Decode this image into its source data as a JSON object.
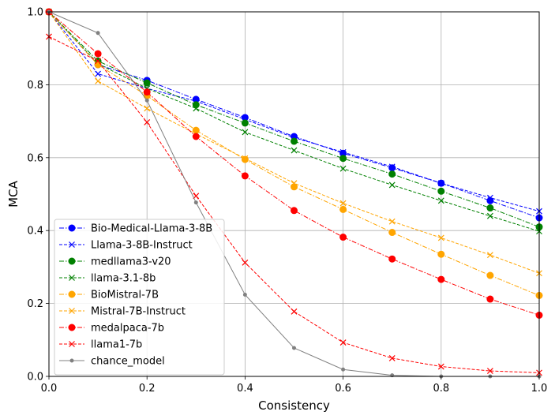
{
  "chart_data": {
    "type": "line",
    "title": "",
    "xlabel": "Consistency",
    "ylabel": "MCA",
    "xlim": [
      0,
      1
    ],
    "ylim": [
      0,
      1
    ],
    "grid": true,
    "legend_position": "lower-left",
    "x": [
      0,
      0.1,
      0.2,
      0.3,
      0.4,
      0.5,
      0.6,
      0.7,
      0.8,
      0.9,
      1.0
    ],
    "xticks": [
      "0.0",
      "0.2",
      "0.4",
      "0.6",
      "0.8",
      "1.0"
    ],
    "yticks": [
      "0.0",
      "0.2",
      "0.4",
      "0.6",
      "0.8",
      "1.0"
    ],
    "series": [
      {
        "name": "Bio-Medical-Llama-3-8B",
        "color": "#0000ff",
        "marker": "circle",
        "dash": "dashdot",
        "values": [
          1.0,
          0.855,
          0.812,
          0.76,
          0.71,
          0.658,
          0.612,
          0.572,
          0.53,
          0.482,
          0.435
        ]
      },
      {
        "name": "Llama-3-8B-Instruct",
        "color": "#0000ff",
        "marker": "x",
        "dash": "dashed",
        "values": [
          1.0,
          0.83,
          0.79,
          0.755,
          0.705,
          0.655,
          0.615,
          0.575,
          0.53,
          0.49,
          0.453
        ]
      },
      {
        "name": "medllama3-v20",
        "color": "#008000",
        "marker": "circle",
        "dash": "dashdot",
        "values": [
          1.0,
          0.865,
          0.805,
          0.745,
          0.695,
          0.645,
          0.598,
          0.555,
          0.508,
          0.462,
          0.41
        ]
      },
      {
        "name": "llama-3.1-8b",
        "color": "#008000",
        "marker": "x",
        "dash": "dashed",
        "values": [
          1.0,
          0.858,
          0.79,
          0.735,
          0.67,
          0.62,
          0.57,
          0.525,
          0.482,
          0.44,
          0.398
        ]
      },
      {
        "name": "BioMistral-7B",
        "color": "#ffa500",
        "marker": "circle",
        "dash": "dashdot",
        "values": [
          1.0,
          0.855,
          0.77,
          0.675,
          0.595,
          0.52,
          0.458,
          0.395,
          0.335,
          0.277,
          0.222
        ]
      },
      {
        "name": "Mistral-7B-Instruct",
        "color": "#ffa500",
        "marker": "x",
        "dash": "dashed",
        "values": [
          1.0,
          0.81,
          0.735,
          0.665,
          0.598,
          0.53,
          0.475,
          0.425,
          0.38,
          0.333,
          0.283
        ]
      },
      {
        "name": "medalpaca-7b",
        "color": "#ff0000",
        "marker": "circle",
        "dash": "dashdot",
        "values": [
          1.0,
          0.885,
          0.78,
          0.658,
          0.55,
          0.455,
          0.382,
          0.322,
          0.266,
          0.212,
          0.168
        ]
      },
      {
        "name": "llama1-7b",
        "color": "#ff0000",
        "marker": "x",
        "dash": "dashed",
        "values": [
          0.932,
          0.865,
          0.697,
          0.495,
          0.312,
          0.178,
          0.093,
          0.05,
          0.027,
          0.015,
          0.01
        ]
      },
      {
        "name": "chance_model",
        "color": "#808080",
        "marker": "dot",
        "dash": "solid",
        "values": [
          1.0,
          0.942,
          0.757,
          0.477,
          0.224,
          0.078,
          0.019,
          0.003,
          0.0,
          0.0,
          0.0
        ]
      }
    ]
  }
}
